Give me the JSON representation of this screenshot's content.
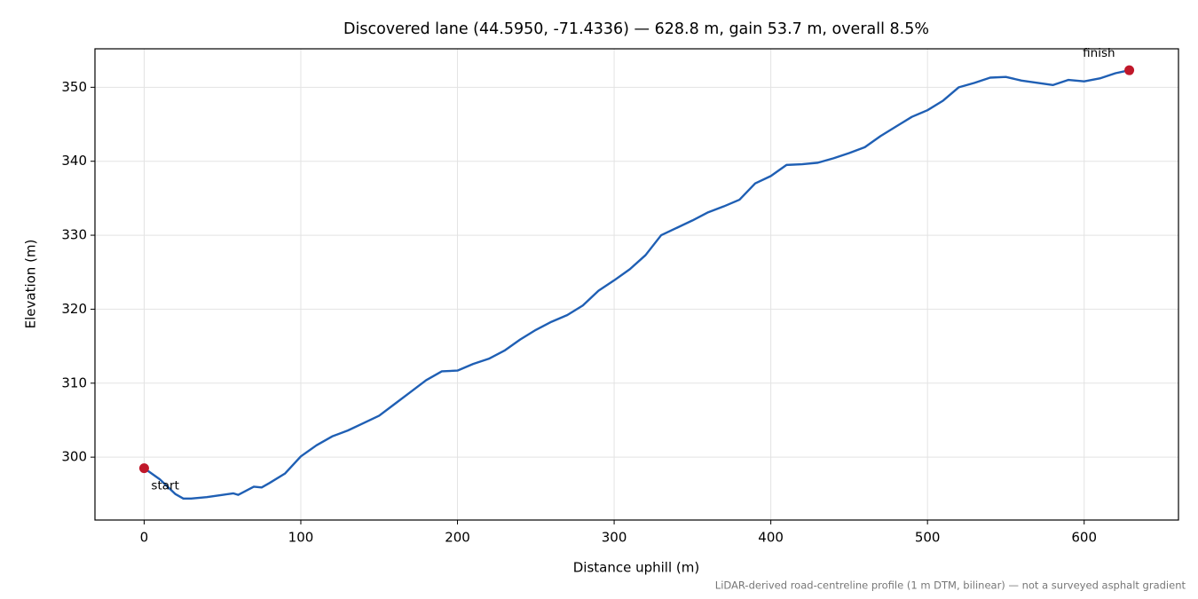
{
  "chart_data": {
    "type": "line",
    "title": "Discovered lane (44.5950, -71.4336) — 628.8 m, gain 53.7 m, overall 8.5%",
    "xlabel": "Distance uphill (m)",
    "ylabel": "Elevation (m)",
    "note": "LiDAR-derived road-centreline profile (1 m DTM, bilinear) — not a surveyed asphalt gradient",
    "start_label": "start",
    "end_label": "finish",
    "marker_color": "#c0182a",
    "x": [
      0,
      10,
      20,
      25,
      30,
      40,
      50,
      57,
      60,
      70,
      75,
      80,
      90,
      100,
      110,
      120,
      130,
      140,
      150,
      160,
      170,
      180,
      190,
      200,
      210,
      220,
      230,
      240,
      250,
      260,
      270,
      280,
      290,
      300,
      310,
      320,
      330,
      340,
      350,
      360,
      370,
      380,
      390,
      400,
      410,
      420,
      430,
      440,
      450,
      460,
      470,
      480,
      490,
      500,
      510,
      520,
      530,
      540,
      550,
      560,
      570,
      580,
      590,
      600,
      610,
      620,
      628.8
    ],
    "series": [
      {
        "name": "Elevation",
        "color": "#1f5fb4",
        "values": [
          298.5,
          297.0,
          295.0,
          294.4,
          294.4,
          294.6,
          294.9,
          295.1,
          294.9,
          296.0,
          295.9,
          296.5,
          297.8,
          300.1,
          301.6,
          302.8,
          303.6,
          304.6,
          305.6,
          307.2,
          308.8,
          310.4,
          311.6,
          311.7,
          312.6,
          313.3,
          314.4,
          315.9,
          317.2,
          318.3,
          319.2,
          320.5,
          322.5,
          323.9,
          325.4,
          327.3,
          330.0,
          331.0,
          332.0,
          333.1,
          333.9,
          334.8,
          337.0,
          338.0,
          339.5,
          339.6,
          339.8,
          340.4,
          341.1,
          341.9,
          343.4,
          344.7,
          346.0,
          346.9,
          348.2,
          350.0,
          350.6,
          351.3,
          351.4,
          350.9,
          350.6,
          350.3,
          351.0,
          350.8,
          351.2,
          351.9,
          352.3
        ]
      }
    ],
    "xlim": [
      -31.4,
      660.2
    ],
    "ylim": [
      291.5,
      355.2
    ],
    "xticks": [
      0,
      100,
      200,
      300,
      400,
      500,
      600
    ],
    "yticks": [
      300,
      310,
      320,
      330,
      340,
      350
    ],
    "grid": true
  }
}
